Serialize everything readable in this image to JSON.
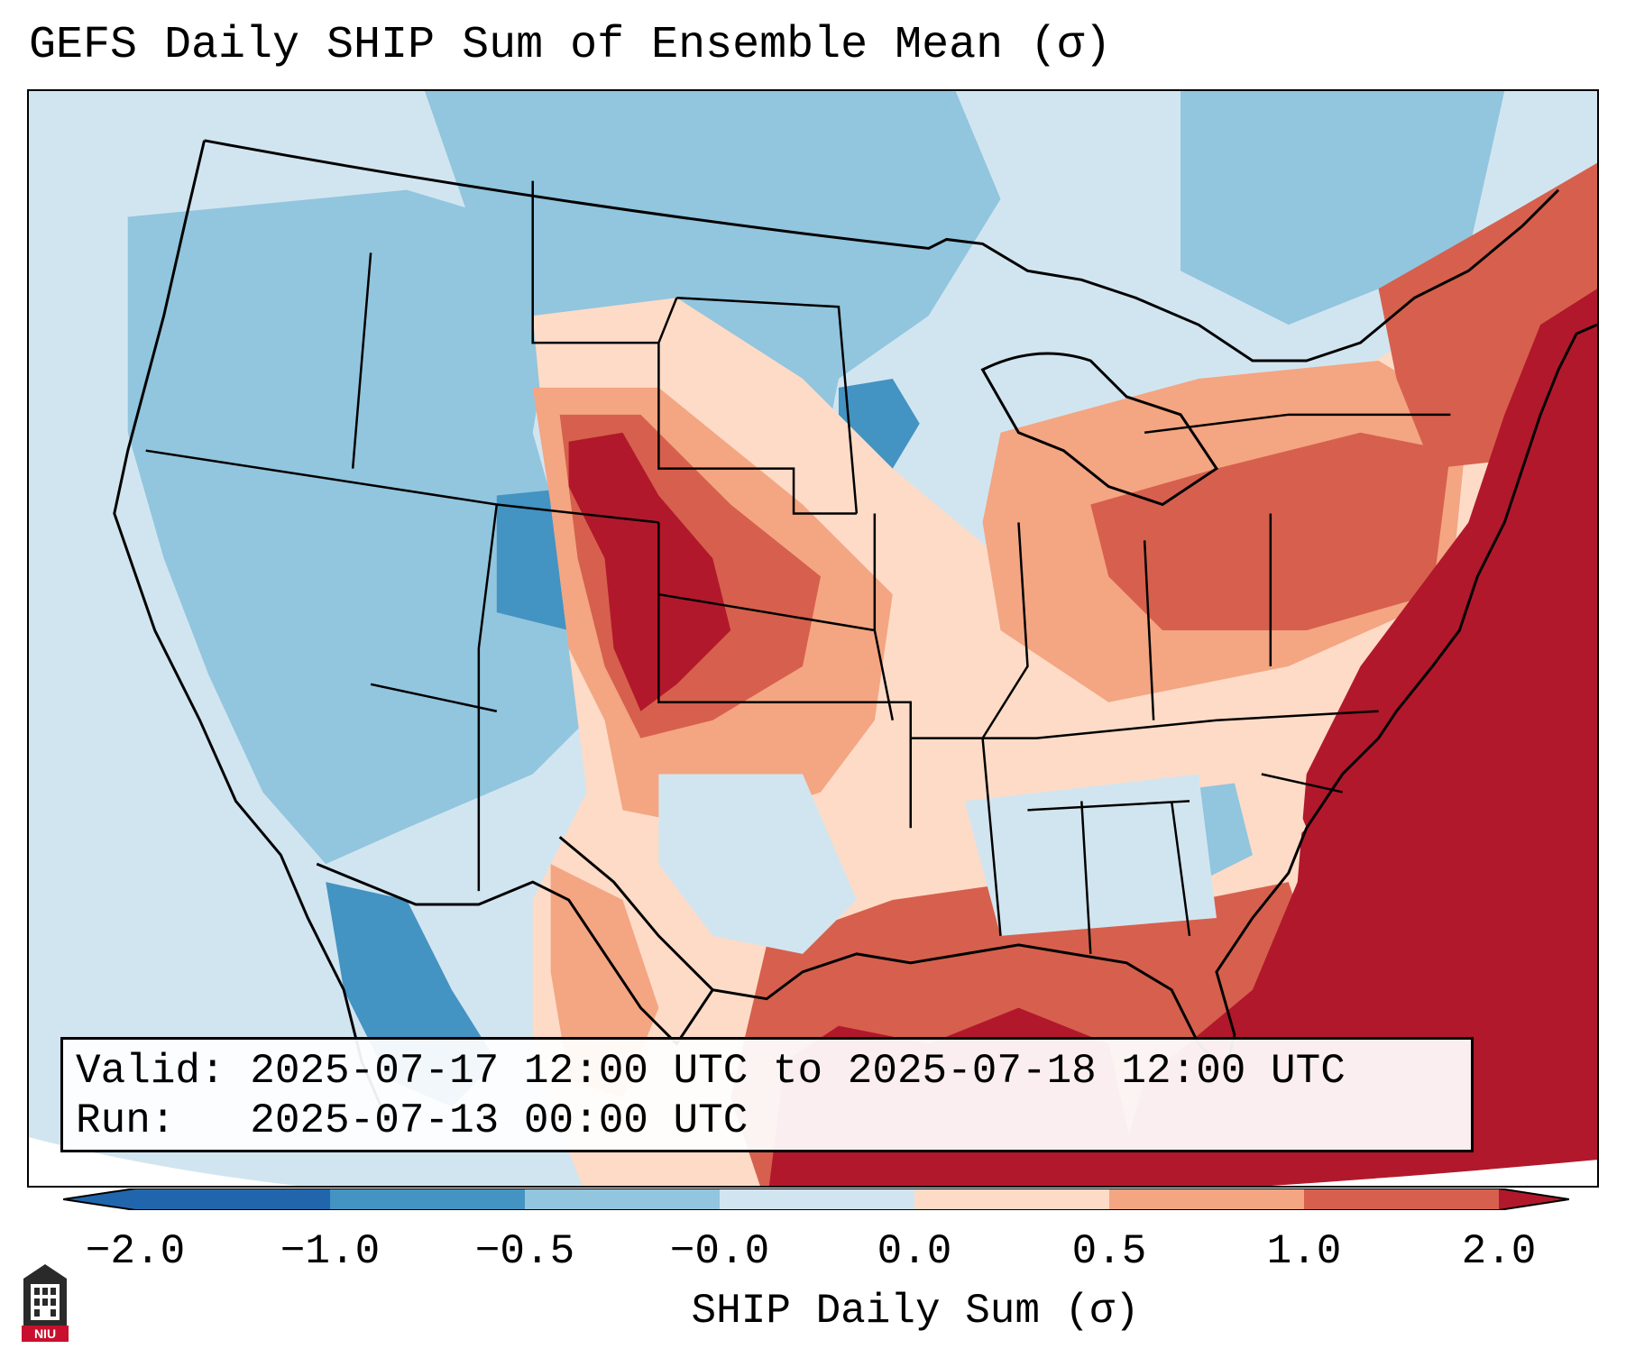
{
  "title": "GEFS Daily SHIP Sum of Ensemble Mean (σ)",
  "info": {
    "valid_line": "Valid: 2025-07-17 12:00 UTC to 2025-07-18 12:00 UTC",
    "run_line": "Run:   2025-07-13 00:00 UTC"
  },
  "colorbar": {
    "label": "SHIP Daily Sum (σ)",
    "ticks": [
      "−2.0",
      "−1.0",
      "−0.5",
      "−0.0",
      "0.0",
      "0.5",
      "1.0",
      "2.0"
    ],
    "colors": {
      "under": "#2166ac",
      "neg_strong": "#4393c3",
      "neg_mid": "#92c5de",
      "neg_weak": "#d1e5f0",
      "pos_weak": "#fddbc7",
      "pos_mid": "#f4a582",
      "pos_strong": "#d6604d",
      "over": "#b2182b"
    }
  },
  "logo": {
    "text": "NIU"
  }
}
